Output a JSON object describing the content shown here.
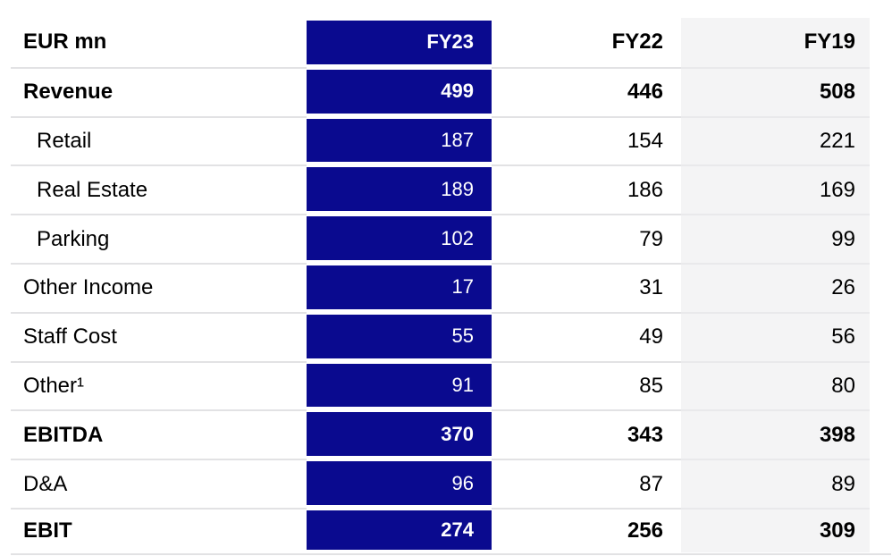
{
  "colors": {
    "highlight": "#0A0A8F",
    "highlight-text": "#FFFFFF",
    "fy19-col-bg": "#F4F4F5",
    "separator": "#E2E2E4",
    "separator-on-gray": "#E9E9EB",
    "text": "#000000"
  },
  "chart_data": {
    "type": "table",
    "unit_label": "EUR mn",
    "columns": [
      "FY23",
      "FY22",
      "FY19"
    ],
    "highlight_column": "FY23",
    "legend_position": "none",
    "rows": [
      {
        "label": "Revenue",
        "FY23": 499,
        "FY22": 446,
        "FY19": 508,
        "bold": true,
        "indent": false
      },
      {
        "label": "Retail",
        "FY23": 187,
        "FY22": 154,
        "FY19": 221,
        "bold": false,
        "indent": true
      },
      {
        "label": "Real Estate",
        "FY23": 189,
        "FY22": 186,
        "FY19": 169,
        "bold": false,
        "indent": true
      },
      {
        "label": "Parking",
        "FY23": 102,
        "FY22": 79,
        "FY19": 99,
        "bold": false,
        "indent": true
      },
      {
        "label": "Other Income",
        "FY23": 17,
        "FY22": 31,
        "FY19": 26,
        "bold": false,
        "indent": false
      },
      {
        "label": "Staff Cost",
        "FY23": 55,
        "FY22": 49,
        "FY19": 56,
        "bold": false,
        "indent": false
      },
      {
        "label": "Other¹",
        "FY23": 91,
        "FY22": 85,
        "FY19": 80,
        "bold": false,
        "indent": false
      },
      {
        "label": "EBITDA",
        "FY23": 370,
        "FY22": 343,
        "FY19": 398,
        "bold": true,
        "indent": false
      },
      {
        "label": "D&A",
        "FY23": 96,
        "FY22": 87,
        "FY19": 89,
        "bold": false,
        "indent": false
      },
      {
        "label": "EBIT",
        "FY23": 274,
        "FY22": 256,
        "FY19": 309,
        "bold": true,
        "indent": false
      }
    ]
  }
}
